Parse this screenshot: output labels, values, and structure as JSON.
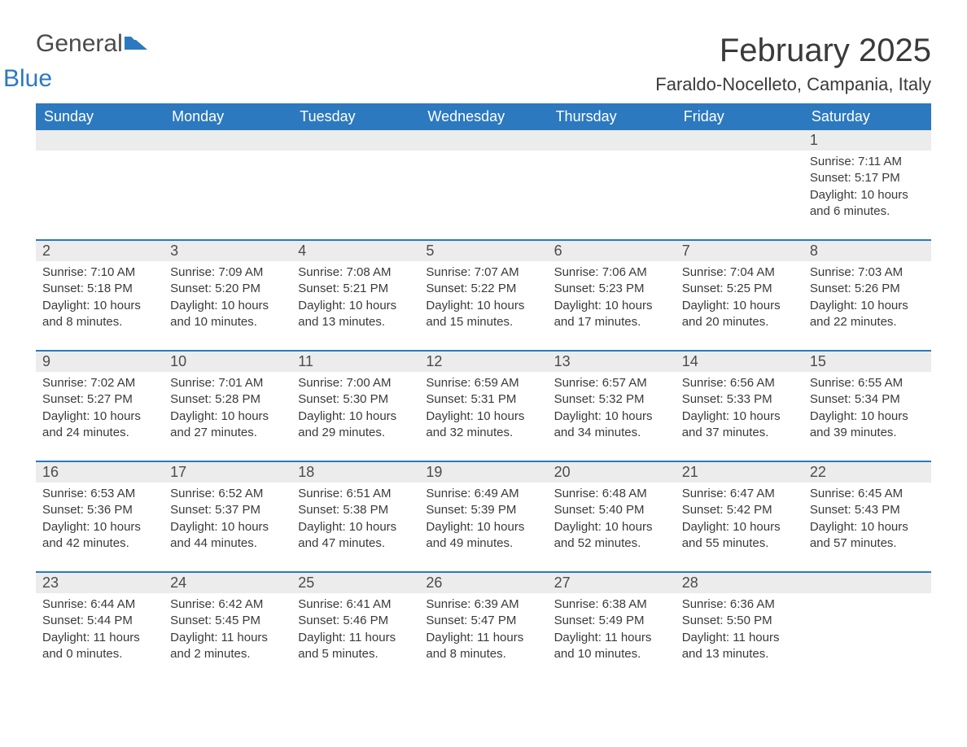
{
  "logo": {
    "text1": "General",
    "text2": "Blue",
    "flag_color": "#2c79bf"
  },
  "title": "February 2025",
  "location": "Faraldo-Nocelleto, Campania, Italy",
  "colors": {
    "header_bg": "#2c79bf",
    "header_text": "#ffffff",
    "daynum_bg": "#ececec",
    "row_divider": "#2c79bf",
    "body_text": "#3a3a3a"
  },
  "weekdays": [
    "Sunday",
    "Monday",
    "Tuesday",
    "Wednesday",
    "Thursday",
    "Friday",
    "Saturday"
  ],
  "weeks": [
    [
      {},
      {},
      {},
      {},
      {},
      {},
      {
        "num": "1",
        "sunrise": "Sunrise: 7:11 AM",
        "sunset": "Sunset: 5:17 PM",
        "daylight": "Daylight: 10 hours and 6 minutes."
      }
    ],
    [
      {
        "num": "2",
        "sunrise": "Sunrise: 7:10 AM",
        "sunset": "Sunset: 5:18 PM",
        "daylight": "Daylight: 10 hours and 8 minutes."
      },
      {
        "num": "3",
        "sunrise": "Sunrise: 7:09 AM",
        "sunset": "Sunset: 5:20 PM",
        "daylight": "Daylight: 10 hours and 10 minutes."
      },
      {
        "num": "4",
        "sunrise": "Sunrise: 7:08 AM",
        "sunset": "Sunset: 5:21 PM",
        "daylight": "Daylight: 10 hours and 13 minutes."
      },
      {
        "num": "5",
        "sunrise": "Sunrise: 7:07 AM",
        "sunset": "Sunset: 5:22 PM",
        "daylight": "Daylight: 10 hours and 15 minutes."
      },
      {
        "num": "6",
        "sunrise": "Sunrise: 7:06 AM",
        "sunset": "Sunset: 5:23 PM",
        "daylight": "Daylight: 10 hours and 17 minutes."
      },
      {
        "num": "7",
        "sunrise": "Sunrise: 7:04 AM",
        "sunset": "Sunset: 5:25 PM",
        "daylight": "Daylight: 10 hours and 20 minutes."
      },
      {
        "num": "8",
        "sunrise": "Sunrise: 7:03 AM",
        "sunset": "Sunset: 5:26 PM",
        "daylight": "Daylight: 10 hours and 22 minutes."
      }
    ],
    [
      {
        "num": "9",
        "sunrise": "Sunrise: 7:02 AM",
        "sunset": "Sunset: 5:27 PM",
        "daylight": "Daylight: 10 hours and 24 minutes."
      },
      {
        "num": "10",
        "sunrise": "Sunrise: 7:01 AM",
        "sunset": "Sunset: 5:28 PM",
        "daylight": "Daylight: 10 hours and 27 minutes."
      },
      {
        "num": "11",
        "sunrise": "Sunrise: 7:00 AM",
        "sunset": "Sunset: 5:30 PM",
        "daylight": "Daylight: 10 hours and 29 minutes."
      },
      {
        "num": "12",
        "sunrise": "Sunrise: 6:59 AM",
        "sunset": "Sunset: 5:31 PM",
        "daylight": "Daylight: 10 hours and 32 minutes."
      },
      {
        "num": "13",
        "sunrise": "Sunrise: 6:57 AM",
        "sunset": "Sunset: 5:32 PM",
        "daylight": "Daylight: 10 hours and 34 minutes."
      },
      {
        "num": "14",
        "sunrise": "Sunrise: 6:56 AM",
        "sunset": "Sunset: 5:33 PM",
        "daylight": "Daylight: 10 hours and 37 minutes."
      },
      {
        "num": "15",
        "sunrise": "Sunrise: 6:55 AM",
        "sunset": "Sunset: 5:34 PM",
        "daylight": "Daylight: 10 hours and 39 minutes."
      }
    ],
    [
      {
        "num": "16",
        "sunrise": "Sunrise: 6:53 AM",
        "sunset": "Sunset: 5:36 PM",
        "daylight": "Daylight: 10 hours and 42 minutes."
      },
      {
        "num": "17",
        "sunrise": "Sunrise: 6:52 AM",
        "sunset": "Sunset: 5:37 PM",
        "daylight": "Daylight: 10 hours and 44 minutes."
      },
      {
        "num": "18",
        "sunrise": "Sunrise: 6:51 AM",
        "sunset": "Sunset: 5:38 PM",
        "daylight": "Daylight: 10 hours and 47 minutes."
      },
      {
        "num": "19",
        "sunrise": "Sunrise: 6:49 AM",
        "sunset": "Sunset: 5:39 PM",
        "daylight": "Daylight: 10 hours and 49 minutes."
      },
      {
        "num": "20",
        "sunrise": "Sunrise: 6:48 AM",
        "sunset": "Sunset: 5:40 PM",
        "daylight": "Daylight: 10 hours and 52 minutes."
      },
      {
        "num": "21",
        "sunrise": "Sunrise: 6:47 AM",
        "sunset": "Sunset: 5:42 PM",
        "daylight": "Daylight: 10 hours and 55 minutes."
      },
      {
        "num": "22",
        "sunrise": "Sunrise: 6:45 AM",
        "sunset": "Sunset: 5:43 PM",
        "daylight": "Daylight: 10 hours and 57 minutes."
      }
    ],
    [
      {
        "num": "23",
        "sunrise": "Sunrise: 6:44 AM",
        "sunset": "Sunset: 5:44 PM",
        "daylight": "Daylight: 11 hours and 0 minutes."
      },
      {
        "num": "24",
        "sunrise": "Sunrise: 6:42 AM",
        "sunset": "Sunset: 5:45 PM",
        "daylight": "Daylight: 11 hours and 2 minutes."
      },
      {
        "num": "25",
        "sunrise": "Sunrise: 6:41 AM",
        "sunset": "Sunset: 5:46 PM",
        "daylight": "Daylight: 11 hours and 5 minutes."
      },
      {
        "num": "26",
        "sunrise": "Sunrise: 6:39 AM",
        "sunset": "Sunset: 5:47 PM",
        "daylight": "Daylight: 11 hours and 8 minutes."
      },
      {
        "num": "27",
        "sunrise": "Sunrise: 6:38 AM",
        "sunset": "Sunset: 5:49 PM",
        "daylight": "Daylight: 11 hours and 10 minutes."
      },
      {
        "num": "28",
        "sunrise": "Sunrise: 6:36 AM",
        "sunset": "Sunset: 5:50 PM",
        "daylight": "Daylight: 11 hours and 13 minutes."
      },
      {}
    ]
  ]
}
